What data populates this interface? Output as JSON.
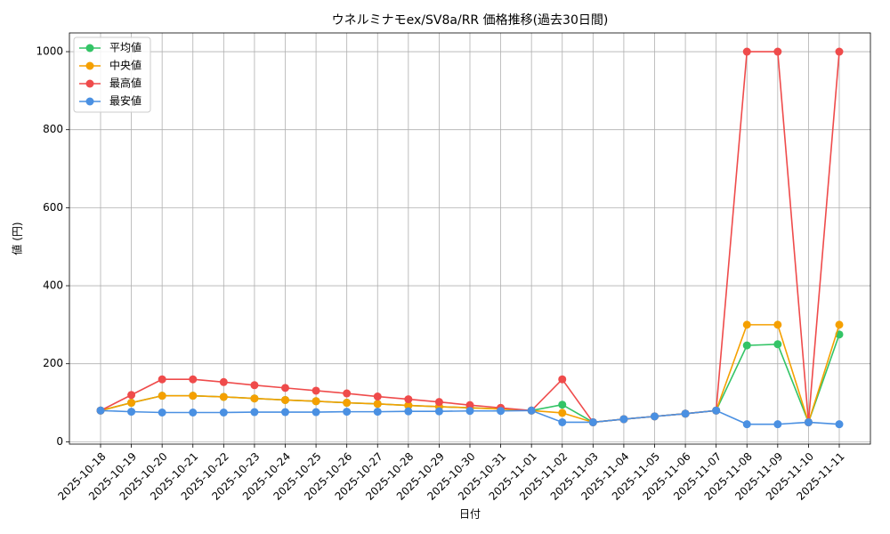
{
  "chart_data": {
    "type": "line",
    "title": "ウネルミナモex/SV8a/RR 価格推移(過去30日間)",
    "x_label": "日付",
    "y_label": "値 (円)",
    "categories": [
      "2025-10-18",
      "2025-10-19",
      "2025-10-20",
      "2025-10-21",
      "2025-10-22",
      "2025-10-23",
      "2025-10-24",
      "2025-10-25",
      "2025-10-26",
      "2025-10-27",
      "2025-10-28",
      "2025-10-29",
      "2025-10-30",
      "2025-10-31",
      "2025-11-01",
      "2025-11-02",
      "2025-11-03",
      "2025-11-04",
      "2025-11-05",
      "2025-11-06",
      "2025-11-07",
      "2025-11-08",
      "2025-11-09",
      "2025-11-10",
      "2025-11-11"
    ],
    "series": [
      {
        "name": "平均値",
        "color": "#33c466",
        "values": [
          80,
          100,
          118,
          118,
          115,
          111,
          107,
          104,
          100,
          97,
          93,
          90,
          87,
          84,
          80,
          95,
          50,
          58,
          65,
          72,
          80,
          247,
          250,
          50,
          275
        ]
      },
      {
        "name": "中央値",
        "color": "#f5a000",
        "values": [
          80,
          100,
          118,
          118,
          115,
          111,
          107,
          104,
          100,
          97,
          93,
          90,
          87,
          84,
          80,
          74,
          50,
          58,
          65,
          72,
          80,
          300,
          300,
          50,
          300
        ]
      },
      {
        "name": "最高値",
        "color": "#ef4b4b",
        "values": [
          80,
          120,
          160,
          160,
          153,
          145,
          138,
          131,
          124,
          116,
          109,
          102,
          94,
          87,
          80,
          160,
          50,
          58,
          65,
          72,
          80,
          1000,
          1000,
          50,
          1000
        ]
      },
      {
        "name": "最安値",
        "color": "#4a90e2",
        "values": [
          80,
          77,
          75,
          75,
          75,
          76,
          76,
          76,
          77,
          77,
          78,
          78,
          79,
          79,
          80,
          50,
          50,
          58,
          65,
          72,
          80,
          45,
          45,
          50,
          45
        ]
      }
    ],
    "ylim": [
      -6,
      1048
    ],
    "yticks": [
      0,
      200,
      400,
      600,
      800,
      1000
    ],
    "grid": true,
    "legend": "upper left"
  }
}
